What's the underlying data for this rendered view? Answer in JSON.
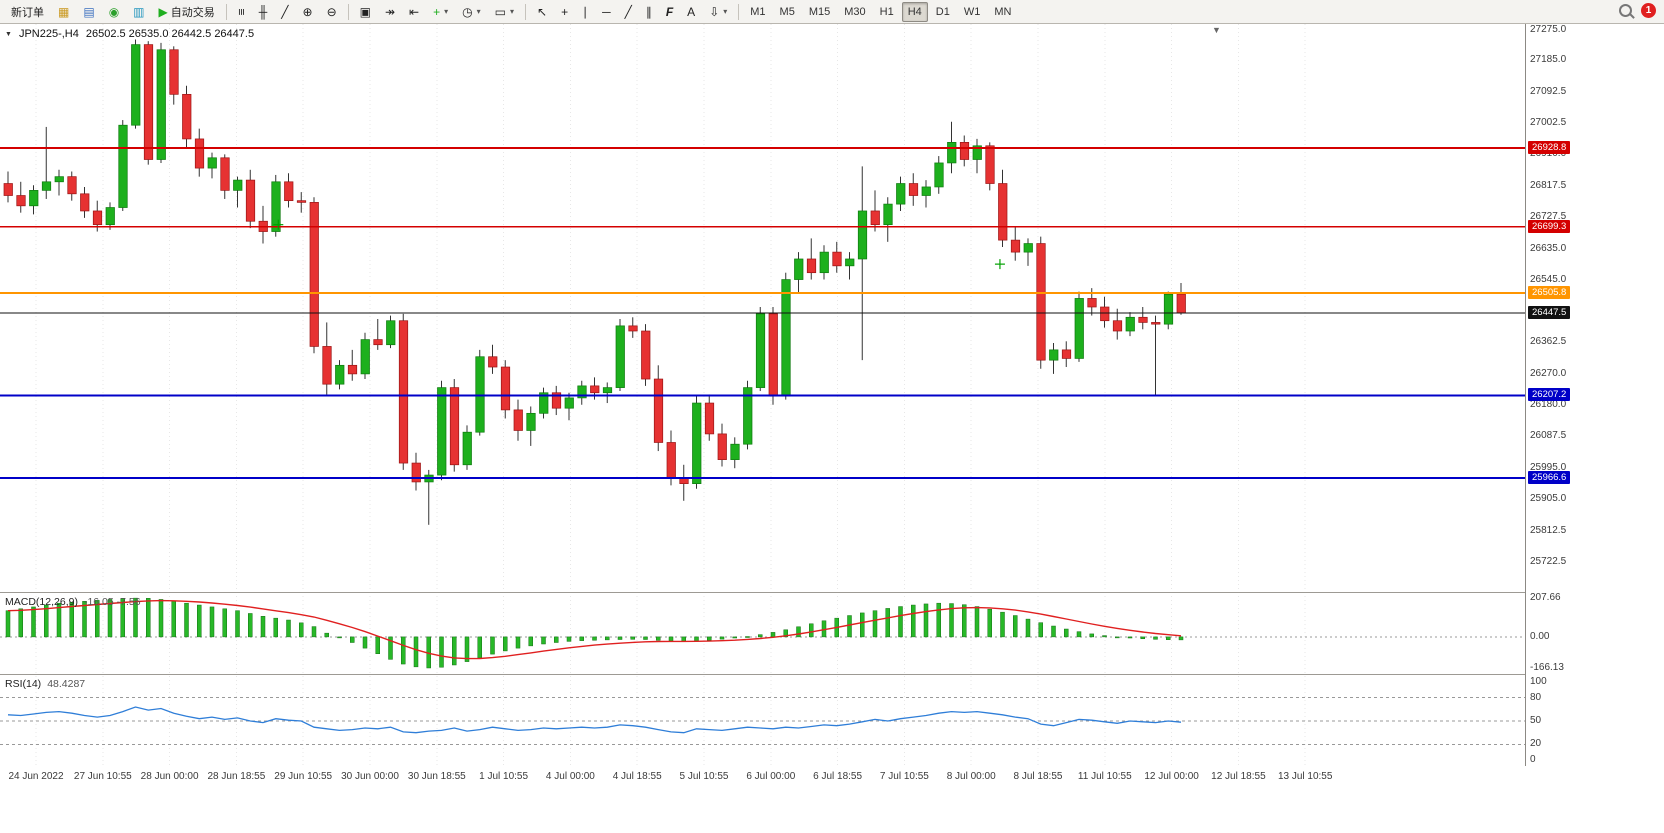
{
  "toolbar": {
    "new_order_label": "新订单",
    "autotrading_label": "自动交易",
    "notification_count": "1",
    "timeframes": [
      "M1",
      "M5",
      "M15",
      "M30",
      "H1",
      "H4",
      "D1",
      "W1",
      "MN"
    ],
    "active_timeframe": "H4",
    "groups": [
      [
        {
          "name": "new-order-button",
          "label": "新订单"
        },
        {
          "name": "new-chart-button",
          "glyph": "▦",
          "color": "#c9971c"
        },
        {
          "name": "market-watch-button",
          "glyph": "▤",
          "color": "#3a6fbf"
        },
        {
          "name": "data-window-button",
          "glyph": "◉",
          "color": "#2ca02c"
        },
        {
          "name": "navigator-button",
          "glyph": "▥",
          "color": "#2596be"
        },
        {
          "name": "autotrading-button",
          "glyph": "▶",
          "color": "#1fae1f",
          "label": "自动交易"
        }
      ],
      [
        {
          "name": "bar-chart-type-button",
          "glyph": "≡",
          "rot": true
        },
        {
          "name": "candlestick-type-button",
          "glyph": "╫"
        },
        {
          "name": "line-chart-type-button",
          "glyph": "╱"
        },
        {
          "name": "zoom-in-button",
          "glyph": "⊕"
        },
        {
          "name": "zoom-out-button",
          "glyph": "⊖"
        }
      ],
      [
        {
          "name": "tile-windows-button",
          "glyph": "▣"
        },
        {
          "name": "auto-scroll-button",
          "glyph": "↠"
        },
        {
          "name": "chart-shift-button",
          "glyph": "⇤"
        },
        {
          "name": "indicators-button",
          "glyph": "+",
          "color": "#1fae1f",
          "caret": true
        },
        {
          "name": "periods-button",
          "glyph": "◷",
          "caret": true
        },
        {
          "name": "templates-button",
          "glyph": "▭",
          "caret": true
        }
      ],
      [
        {
          "name": "cursor-button",
          "glyph": "↖"
        },
        {
          "name": "crosshair-button",
          "glyph": "+"
        },
        {
          "name": "vertical-line-button",
          "glyph": "∣"
        },
        {
          "name": "horizontal-line-button",
          "glyph": "─"
        },
        {
          "name": "trendline-button",
          "glyph": "╱"
        },
        {
          "name": "equidistant-channel-button",
          "glyph": "∥"
        },
        {
          "name": "fibonacci-button",
          "glyph": "F",
          "ital": true
        },
        {
          "name": "text-button",
          "glyph": "A"
        },
        {
          "name": "arrows-button",
          "glyph": "⇩",
          "caret": true
        }
      ]
    ]
  },
  "chart": {
    "symbol_label": "JPN225-,H4",
    "ohlc_text": "26502.5 26535.0 26442.5 26447.5",
    "shift_marker_glyph": "▼",
    "one_click_glyph": "▼",
    "price_ticks": [
      "27275.0",
      "27185.0",
      "27092.5",
      "27002.5",
      "26910.0",
      "26817.5",
      "26727.5",
      "26635.0",
      "26545.0",
      "26362.5",
      "26270.0",
      "26180.0",
      "26087.5",
      "25995.0",
      "25905.0",
      "25812.5",
      "25722.5"
    ],
    "levels": [
      {
        "price": 26928.8,
        "label": "26928.8",
        "color": "#d40000"
      },
      {
        "price": 26699.3,
        "label": "26699.3",
        "color": "#d40000"
      },
      {
        "price": 26505.8,
        "label": "26505.8",
        "color": "#ff9500"
      },
      {
        "price": 26207.2,
        "label": "26207.2",
        "color": "#0000c8"
      },
      {
        "price": 25966.6,
        "label": "25966.6",
        "color": "#0000c8"
      }
    ],
    "current_price": {
      "value": 26447.5,
      "label": "26447.5",
      "color": "#111111"
    },
    "markers": [
      {
        "x_index": 21.2,
        "price": 26705
      },
      {
        "x_index": 77.8,
        "price": 26590
      }
    ],
    "time_labels": [
      "24 Jun 2022",
      "27 Jun 10:55",
      "28 Jun 00:00",
      "28 Jun 18:55",
      "29 Jun 10:55",
      "30 Jun 00:00",
      "30 Jun 18:55",
      "1 Jul 10:55",
      "4 Jul 00:00",
      "4 Jul 18:55",
      "5 Jul 10:55",
      "6 Jul 00:00",
      "6 Jul 18:55",
      "7 Jul 10:55",
      "8 Jul 00:00",
      "8 Jul 18:55",
      "11 Jul 10:55",
      "12 Jul 00:00",
      "12 Jul 18:55",
      "13 Jul 10:55"
    ],
    "candles": [
      [
        26825,
        26860,
        26770,
        26790
      ],
      [
        26790,
        26830,
        26740,
        26760
      ],
      [
        26760,
        26820,
        26735,
        26805
      ],
      [
        26805,
        26990,
        26780,
        26830
      ],
      [
        26830,
        26865,
        26790,
        26845
      ],
      [
        26845,
        26860,
        26775,
        26795
      ],
      [
        26795,
        26815,
        26725,
        26745
      ],
      [
        26745,
        26775,
        26685,
        26705
      ],
      [
        26705,
        26770,
        26690,
        26755
      ],
      [
        26755,
        27010,
        26745,
        26995
      ],
      [
        26995,
        27245,
        26985,
        27230
      ],
      [
        27230,
        27240,
        26880,
        26895
      ],
      [
        26895,
        27235,
        26885,
        27215
      ],
      [
        27215,
        27225,
        27055,
        27085
      ],
      [
        27085,
        27110,
        26930,
        26955
      ],
      [
        26955,
        26985,
        26845,
        26870
      ],
      [
        26870,
        26915,
        26840,
        26900
      ],
      [
        26900,
        26910,
        26780,
        26805
      ],
      [
        26805,
        26845,
        26755,
        26835
      ],
      [
        26835,
        26865,
        26695,
        26715
      ],
      [
        26715,
        26760,
        26650,
        26685
      ],
      [
        26685,
        26850,
        26670,
        26830
      ],
      [
        26830,
        26855,
        26755,
        26775
      ],
      [
        26775,
        26800,
        26740,
        26770
      ],
      [
        26770,
        26785,
        26330,
        26350
      ],
      [
        26350,
        26420,
        26210,
        26240
      ],
      [
        26240,
        26310,
        26225,
        26295
      ],
      [
        26295,
        26340,
        26250,
        26270
      ],
      [
        26270,
        26390,
        26255,
        26370
      ],
      [
        26370,
        26430,
        26340,
        26355
      ],
      [
        26355,
        26440,
        26345,
        26425
      ],
      [
        26425,
        26445,
        25990,
        26010
      ],
      [
        26010,
        26040,
        25930,
        25955
      ],
      [
        25955,
        25990,
        25830,
        25975
      ],
      [
        25975,
        26250,
        25960,
        26230
      ],
      [
        26230,
        26255,
        25985,
        26005
      ],
      [
        26005,
        26120,
        25990,
        26100
      ],
      [
        26100,
        26340,
        26090,
        26320
      ],
      [
        26320,
        26355,
        26270,
        26290
      ],
      [
        26290,
        26310,
        26140,
        26165
      ],
      [
        26165,
        26195,
        26075,
        26105
      ],
      [
        26105,
        26175,
        26060,
        26155
      ],
      [
        26155,
        26230,
        26140,
        26215
      ],
      [
        26215,
        26235,
        26150,
        26170
      ],
      [
        26170,
        26215,
        26135,
        26200
      ],
      [
        26200,
        26250,
        26180,
        26235
      ],
      [
        26235,
        26260,
        26195,
        26215
      ],
      [
        26215,
        26245,
        26185,
        26230
      ],
      [
        26230,
        26430,
        26220,
        26410
      ],
      [
        26410,
        26435,
        26375,
        26395
      ],
      [
        26395,
        26415,
        26235,
        26255
      ],
      [
        26255,
        26295,
        26045,
        26070
      ],
      [
        26070,
        26105,
        25945,
        25965
      ],
      [
        25965,
        26005,
        25900,
        25950
      ],
      [
        25950,
        26205,
        25935,
        26185
      ],
      [
        26185,
        26210,
        26075,
        26095
      ],
      [
        26095,
        26125,
        26000,
        26020
      ],
      [
        26020,
        26085,
        25995,
        26065
      ],
      [
        26065,
        26250,
        26050,
        26230
      ],
      [
        26230,
        26465,
        26220,
        26445
      ],
      [
        26445,
        26465,
        26180,
        26205
      ],
      [
        26205,
        26565,
        26195,
        26545
      ],
      [
        26545,
        26625,
        26505,
        26605
      ],
      [
        26605,
        26665,
        26545,
        26565
      ],
      [
        26565,
        26645,
        26545,
        26625
      ],
      [
        26625,
        26655,
        26565,
        26585
      ],
      [
        26585,
        26625,
        26545,
        26605
      ],
      [
        26605,
        26875,
        26310,
        26745
      ],
      [
        26745,
        26805,
        26685,
        26705
      ],
      [
        26705,
        26785,
        26655,
        26765
      ],
      [
        26765,
        26845,
        26745,
        26825
      ],
      [
        26825,
        26855,
        26760,
        26790
      ],
      [
        26790,
        26835,
        26755,
        26815
      ],
      [
        26815,
        26905,
        26795,
        26885
      ],
      [
        26885,
        27005,
        26855,
        26945
      ],
      [
        26945,
        26965,
        26875,
        26895
      ],
      [
        26895,
        26955,
        26855,
        26935
      ],
      [
        26935,
        26945,
        26805,
        26825
      ],
      [
        26825,
        26865,
        26640,
        26660
      ],
      [
        26660,
        26700,
        26600,
        26625
      ],
      [
        26625,
        26665,
        26585,
        26650
      ],
      [
        26650,
        26670,
        26285,
        26310
      ],
      [
        26310,
        26360,
        26270,
        26340
      ],
      [
        26340,
        26365,
        26290,
        26315
      ],
      [
        26315,
        26510,
        26305,
        26490
      ],
      [
        26490,
        26520,
        26440,
        26465
      ],
      [
        26465,
        26495,
        26405,
        26425
      ],
      [
        26425,
        26460,
        26370,
        26395
      ],
      [
        26395,
        26450,
        26380,
        26435
      ],
      [
        26435,
        26465,
        26400,
        26420
      ],
      [
        26420,
        26440,
        26205,
        26415
      ],
      [
        26415,
        26510,
        26400,
        26502
      ],
      [
        26502.5,
        26535.0,
        26442.5,
        26447.5
      ]
    ]
  },
  "macd": {
    "title": "MACD(12,26,9)",
    "values_text": "-16.05 -7.56",
    "axis": [
      "207.66",
      "0.00",
      "-166.13"
    ],
    "range": [
      207.66,
      -166.13
    ],
    "histogram": [
      140,
      150,
      160,
      170,
      180,
      185,
      190,
      195,
      200,
      205,
      207,
      206,
      200,
      190,
      180,
      170,
      160,
      150,
      140,
      125,
      110,
      100,
      90,
      75,
      55,
      20,
      -5,
      -30,
      -60,
      -90,
      -120,
      -145,
      -160,
      -166,
      -162,
      -150,
      -132,
      -112,
      -92,
      -75,
      -60,
      -48,
      -38,
      -30,
      -24,
      -20,
      -18,
      -16,
      -14,
      -13,
      -14,
      -18,
      -22,
      -24,
      -22,
      -18,
      -12,
      -6,
      2,
      12,
      24,
      38,
      54,
      70,
      86,
      100,
      114,
      128,
      140,
      152,
      162,
      170,
      176,
      180,
      178,
      172,
      162,
      148,
      132,
      114,
      95,
      76,
      58,
      42,
      28,
      16,
      7,
      0,
      -6,
      -10,
      -13,
      -15,
      -16
    ]
  },
  "rsi": {
    "title": "RSI(14)",
    "value_text": "48.4287",
    "axis": [
      "100",
      "80",
      "50",
      "20",
      "0"
    ],
    "levels": [
      80,
      50,
      20
    ],
    "range": [
      0,
      100
    ],
    "values": [
      58,
      57,
      59,
      61,
      62,
      60,
      57,
      55,
      57,
      62,
      68,
      64,
      66,
      60,
      56,
      53,
      55,
      52,
      54,
      50,
      48,
      53,
      51,
      50,
      42,
      40,
      38,
      39,
      41,
      40,
      42,
      36,
      35,
      37,
      38,
      41,
      37,
      39,
      42,
      40,
      38,
      39,
      41,
      40,
      41,
      42,
      41,
      42,
      45,
      44,
      42,
      39,
      36,
      35,
      40,
      39,
      38,
      40,
      42,
      41,
      40,
      42,
      41,
      43,
      45,
      44,
      46,
      49,
      52,
      50,
      53,
      55,
      57,
      60,
      62,
      61,
      62,
      60,
      58,
      55,
      53,
      46,
      44,
      48,
      52,
      51,
      49,
      47,
      50,
      49,
      48,
      50,
      48.43
    ]
  },
  "chart_data": {
    "type": "candlestick-with-indicators",
    "symbol": "JPN225-",
    "timeframe": "H4",
    "main_ylim": [
      25722.5,
      27275.0
    ],
    "indicators": [
      "MACD(12,26,9)",
      "RSI(14)"
    ]
  },
  "colors": {
    "bull": "#1db01d",
    "bear": "#e63232",
    "wick": "#333333",
    "macd_hist": "#28b828",
    "macd_signal": "#e02020",
    "rsi_line": "#2f7ed8",
    "grid": "#e7e7e7"
  }
}
